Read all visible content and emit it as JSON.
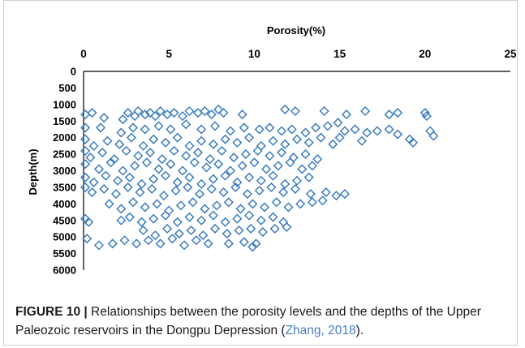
{
  "chart_data": {
    "type": "scatter",
    "xlabel": "Porosity(%)",
    "ylabel": "Depth(m)",
    "xlim": [
      0,
      25
    ],
    "ylim": [
      0,
      6000
    ],
    "y_inverted": true,
    "x_axis_position": "top",
    "xticks": [
      "0",
      "5",
      "10",
      "15",
      "20",
      "25"
    ],
    "yticks": [
      "0",
      "500",
      "1000",
      "1500",
      "2000",
      "2500",
      "3000",
      "3500",
      "4000",
      "4500",
      "5000",
      "5500",
      "6000"
    ],
    "marker": "hollow-diamond",
    "series": [
      {
        "color": "#3d7ebf",
        "points": [
          [
            0.1,
            1300
          ],
          [
            0.5,
            1250
          ],
          [
            1.2,
            1400
          ],
          [
            2.3,
            1450
          ],
          [
            2.6,
            1250
          ],
          [
            3.0,
            1350
          ],
          [
            3.2,
            1200
          ],
          [
            3.6,
            1300
          ],
          [
            3.9,
            1250
          ],
          [
            4.2,
            1350
          ],
          [
            4.5,
            1200
          ],
          [
            4.9,
            1300
          ],
          [
            5.3,
            1250
          ],
          [
            5.8,
            1350
          ],
          [
            6.2,
            1200
          ],
          [
            6.7,
            1250
          ],
          [
            7.1,
            1200
          ],
          [
            7.5,
            1300
          ],
          [
            7.9,
            1150
          ],
          [
            8.2,
            1250
          ],
          [
            9.3,
            1300
          ],
          [
            11.8,
            1150
          ],
          [
            12.4,
            1200
          ],
          [
            14.1,
            1200
          ],
          [
            15.4,
            1300
          ],
          [
            16.5,
            1200
          ],
          [
            17.9,
            1300
          ],
          [
            18.4,
            1250
          ],
          [
            20.0,
            1250
          ],
          [
            20.1,
            1350
          ],
          [
            0.1,
            1700
          ],
          [
            1.0,
            1700
          ],
          [
            2.2,
            1850
          ],
          [
            2.9,
            1700
          ],
          [
            3.6,
            1750
          ],
          [
            4.4,
            1650
          ],
          [
            5.1,
            1750
          ],
          [
            6.0,
            1600
          ],
          [
            6.9,
            1750
          ],
          [
            7.7,
            1650
          ],
          [
            8.6,
            1800
          ],
          [
            9.4,
            1700
          ],
          [
            10.3,
            1750
          ],
          [
            10.9,
            1700
          ],
          [
            11.6,
            1800
          ],
          [
            12.2,
            1750
          ],
          [
            13.0,
            1850
          ],
          [
            13.6,
            1700
          ],
          [
            14.3,
            1650
          ],
          [
            14.9,
            1550
          ],
          [
            15.3,
            1800
          ],
          [
            15.9,
            1750
          ],
          [
            16.6,
            1850
          ],
          [
            17.2,
            1800
          ],
          [
            17.9,
            1750
          ],
          [
            18.4,
            1900
          ],
          [
            19.1,
            2050
          ],
          [
            19.3,
            2150
          ],
          [
            20.3,
            1800
          ],
          [
            20.5,
            1950
          ],
          [
            16.3,
            2100
          ],
          [
            15.0,
            2000
          ],
          [
            0.1,
            2050
          ],
          [
            0.6,
            2250
          ],
          [
            1.4,
            2100
          ],
          [
            2.1,
            2200
          ],
          [
            2.8,
            2000
          ],
          [
            3.5,
            2250
          ],
          [
            4.1,
            2050
          ],
          [
            4.8,
            2150
          ],
          [
            5.5,
            2000
          ],
          [
            6.2,
            2250
          ],
          [
            6.9,
            2100
          ],
          [
            7.6,
            2200
          ],
          [
            8.3,
            2050
          ],
          [
            9.0,
            2150
          ],
          [
            9.7,
            2000
          ],
          [
            10.4,
            2250
          ],
          [
            11.1,
            2100
          ],
          [
            11.8,
            2200
          ],
          [
            12.5,
            2050
          ],
          [
            13.2,
            2150
          ],
          [
            13.9,
            2000
          ],
          [
            14.6,
            2200
          ],
          [
            0.1,
            2400
          ],
          [
            0.4,
            2600
          ],
          [
            1.1,
            2450
          ],
          [
            1.8,
            2650
          ],
          [
            2.5,
            2400
          ],
          [
            3.2,
            2550
          ],
          [
            3.9,
            2450
          ],
          [
            4.6,
            2650
          ],
          [
            5.3,
            2400
          ],
          [
            6.0,
            2550
          ],
          [
            6.7,
            2450
          ],
          [
            7.4,
            2650
          ],
          [
            8.1,
            2400
          ],
          [
            8.8,
            2600
          ],
          [
            9.5,
            2500
          ],
          [
            10.2,
            2400
          ],
          [
            10.9,
            2550
          ],
          [
            11.6,
            2450
          ],
          [
            12.3,
            2600
          ],
          [
            13.0,
            2500
          ],
          [
            13.7,
            2650
          ],
          [
            0.1,
            2800
          ],
          [
            0.9,
            2950
          ],
          [
            1.6,
            2750
          ],
          [
            2.3,
            3000
          ],
          [
            3.0,
            2850
          ],
          [
            3.7,
            2750
          ],
          [
            4.4,
            2950
          ],
          [
            5.1,
            2800
          ],
          [
            5.8,
            3000
          ],
          [
            6.5,
            2750
          ],
          [
            7.2,
            2900
          ],
          [
            7.9,
            2800
          ],
          [
            8.6,
            3000
          ],
          [
            9.3,
            2850
          ],
          [
            10.0,
            2750
          ],
          [
            10.7,
            2950
          ],
          [
            11.4,
            2850
          ],
          [
            12.1,
            2750
          ],
          [
            12.8,
            2950
          ],
          [
            13.4,
            2850
          ],
          [
            0.1,
            3200
          ],
          [
            0.6,
            3350
          ],
          [
            1.3,
            3150
          ],
          [
            2.0,
            3300
          ],
          [
            2.7,
            3200
          ],
          [
            3.4,
            3400
          ],
          [
            4.1,
            3250
          ],
          [
            4.8,
            3150
          ],
          [
            5.5,
            3350
          ],
          [
            6.2,
            3200
          ],
          [
            6.9,
            3400
          ],
          [
            7.6,
            3250
          ],
          [
            8.3,
            3150
          ],
          [
            9.0,
            3350
          ],
          [
            9.7,
            3200
          ],
          [
            10.4,
            3300
          ],
          [
            11.1,
            3150
          ],
          [
            11.8,
            3400
          ],
          [
            12.5,
            3300
          ],
          [
            13.2,
            3200
          ],
          [
            0.1,
            3500
          ],
          [
            0.5,
            3650
          ],
          [
            1.2,
            3550
          ],
          [
            1.9,
            3700
          ],
          [
            2.6,
            3500
          ],
          [
            3.3,
            3650
          ],
          [
            4.0,
            3550
          ],
          [
            4.7,
            3750
          ],
          [
            5.4,
            3600
          ],
          [
            6.1,
            3500
          ],
          [
            6.8,
            3700
          ],
          [
            7.5,
            3550
          ],
          [
            8.2,
            3650
          ],
          [
            8.9,
            3500
          ],
          [
            9.6,
            3700
          ],
          [
            10.3,
            3600
          ],
          [
            11.0,
            3500
          ],
          [
            11.7,
            3650
          ],
          [
            12.4,
            3550
          ],
          [
            13.3,
            3700
          ],
          [
            14.2,
            3650
          ],
          [
            14.8,
            3750
          ],
          [
            15.3,
            3700
          ],
          [
            1.5,
            4000
          ],
          [
            2.2,
            4150
          ],
          [
            2.9,
            3950
          ],
          [
            3.6,
            4100
          ],
          [
            4.3,
            4000
          ],
          [
            5.0,
            4200
          ],
          [
            5.7,
            4050
          ],
          [
            6.4,
            3950
          ],
          [
            7.1,
            4150
          ],
          [
            7.8,
            4050
          ],
          [
            8.5,
            3950
          ],
          [
            9.2,
            4150
          ],
          [
            9.9,
            4000
          ],
          [
            10.6,
            4100
          ],
          [
            11.3,
            3950
          ],
          [
            12.0,
            4100
          ],
          [
            12.7,
            4000
          ],
          [
            13.4,
            3950
          ],
          [
            14.0,
            3900
          ],
          [
            0.1,
            4450
          ],
          [
            0.3,
            4550
          ],
          [
            2.2,
            4500
          ],
          [
            2.7,
            4400
          ],
          [
            3.4,
            4550
          ],
          [
            4.1,
            4450
          ],
          [
            4.8,
            4350
          ],
          [
            5.5,
            4550
          ],
          [
            6.2,
            4400
          ],
          [
            6.9,
            4500
          ],
          [
            7.6,
            4350
          ],
          [
            8.3,
            4550
          ],
          [
            9.0,
            4450
          ],
          [
            9.7,
            4350
          ],
          [
            10.4,
            4500
          ],
          [
            11.1,
            4400
          ],
          [
            11.7,
            4550
          ],
          [
            3.5,
            4800
          ],
          [
            4.2,
            4950
          ],
          [
            4.9,
            4750
          ],
          [
            5.6,
            4900
          ],
          [
            6.3,
            4800
          ],
          [
            7.0,
            4950
          ],
          [
            7.7,
            4750
          ],
          [
            8.4,
            4900
          ],
          [
            9.1,
            4800
          ],
          [
            9.8,
            4750
          ],
          [
            10.5,
            4850
          ],
          [
            11.2,
            4750
          ],
          [
            11.9,
            4700
          ],
          [
            0.2,
            5050
          ],
          [
            0.9,
            5250
          ],
          [
            1.7,
            5200
          ],
          [
            2.4,
            5100
          ],
          [
            3.1,
            5200
          ],
          [
            3.8,
            5100
          ],
          [
            4.5,
            5200
          ],
          [
            5.2,
            5050
          ],
          [
            5.9,
            5250
          ],
          [
            6.6,
            5100
          ],
          [
            7.3,
            5200
          ],
          [
            8.5,
            5200
          ],
          [
            9.4,
            5150
          ],
          [
            9.9,
            5300
          ],
          [
            10.1,
            5200
          ]
        ]
      }
    ]
  },
  "caption": {
    "label": "FIGURE 10 |",
    "text": " Relationships between the porosity levels and the depths of the Upper Paleozoic reservoirs in the Dongpu Depression (",
    "ref": "Zhang, 2018",
    "tail": ")."
  }
}
